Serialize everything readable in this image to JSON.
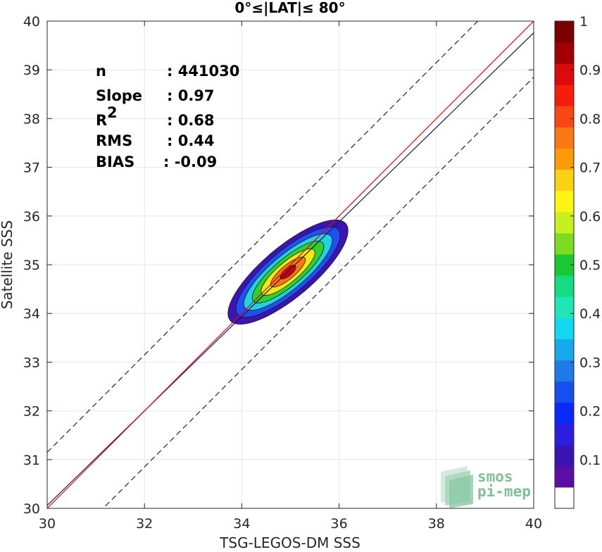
{
  "chart_data": {
    "type": "heatmap",
    "title": "0°≤|LAT|≤ 80°",
    "xlabel": "TSG-LEGOS-DM SSS",
    "ylabel": "Satellite SSS",
    "xlim": [
      30,
      40
    ],
    "ylim": [
      30,
      40
    ],
    "xticks": [
      30,
      32,
      34,
      36,
      38,
      40
    ],
    "yticks": [
      30,
      31,
      32,
      33,
      34,
      35,
      36,
      37,
      38,
      39,
      40
    ],
    "grid": true,
    "stats": [
      {
        "label": "n",
        "value": ": 441030"
      },
      {
        "label": "Slope",
        "value": ": 0.97"
      },
      {
        "label": "R",
        "sup": "2",
        "value": ": 0.68"
      },
      {
        "label": "RMS",
        "value": ": 0.44"
      },
      {
        "label": "BIAS",
        "value": ": -0.09"
      }
    ],
    "lines": {
      "identity": {
        "slope": 1,
        "intercept": 0,
        "color": "#e8000b"
      },
      "fit": {
        "slope": 0.97,
        "intercept": 0.96,
        "color": "#1a1a5e"
      },
      "upper_bound": {
        "offset": 1.15,
        "style": "dashed"
      },
      "lower_bound": {
        "offset": -1.15,
        "style": "dashed"
      }
    },
    "density": {
      "center": [
        34.95,
        34.85
      ],
      "angle_deg": 40,
      "levels": [
        0.05,
        0.2,
        0.35,
        0.5,
        0.65,
        0.8,
        0.95
      ],
      "level_axes": [
        [
          1.55,
          0.52
        ],
        [
          1.35,
          0.43
        ],
        [
          1.15,
          0.35
        ],
        [
          0.93,
          0.28
        ],
        [
          0.7,
          0.21
        ],
        [
          0.45,
          0.14
        ],
        [
          0.2,
          0.08
        ]
      ],
      "level_colors": [
        "#3c14b4",
        "#1e50f5",
        "#1fd3e0",
        "#2fd12a",
        "#f5e70d",
        "#f57814",
        "#c8000a"
      ]
    },
    "colorbar": {
      "range": [
        0,
        1
      ],
      "ticks": [
        "0.1",
        "0.2",
        "0.3",
        "0.4",
        "0.5",
        "0.6",
        "0.7",
        "0.8",
        "0.9",
        "1"
      ],
      "colors": [
        "#ffffff",
        "#5a0ea6",
        "#3c14b4",
        "#2a1ee0",
        "#0a28ff",
        "#1450f0",
        "#1e7ae6",
        "#14aaeb",
        "#14d7f0",
        "#1ee6b4",
        "#14dc82",
        "#19c832",
        "#7ddc1e",
        "#c8f01e",
        "#faf514",
        "#fad214",
        "#fa9b0a",
        "#fa7814",
        "#fa4614",
        "#f51e0a",
        "#dc0a0a",
        "#a00000",
        "#780000"
      ]
    }
  },
  "watermark": {
    "line1": "smos",
    "line2": "pi-mep",
    "color": "#7fbf99"
  }
}
